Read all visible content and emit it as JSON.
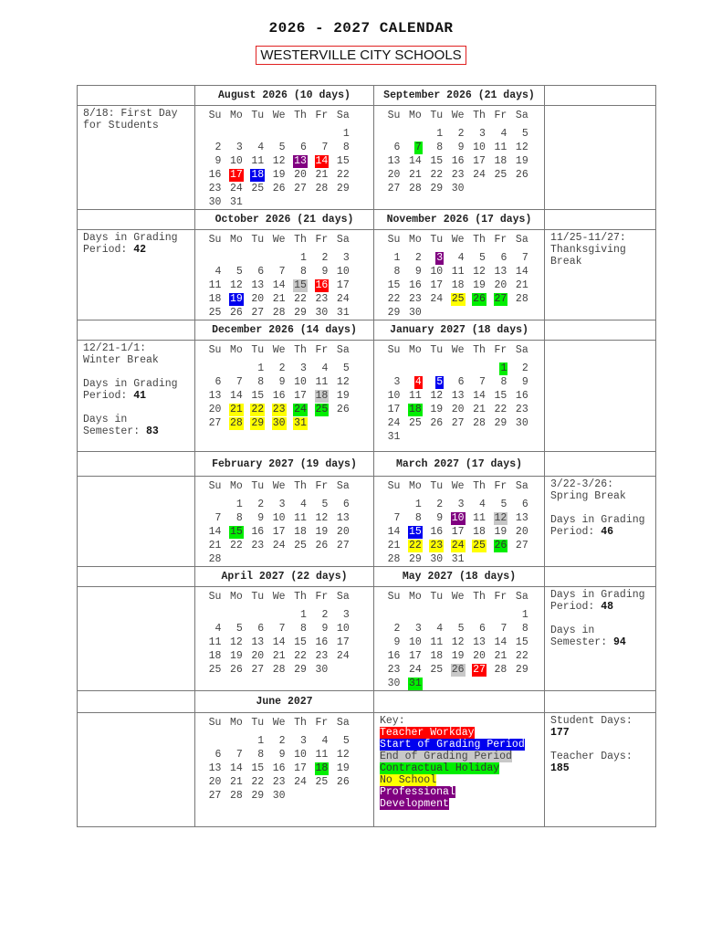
{
  "title": "2026 - 2027 CALENDAR",
  "subtitle": "WESTERVILLE CITY SCHOOLS",
  "weekday_headers": [
    "Su",
    "Mo",
    "Tu",
    "We",
    "Th",
    "Fr",
    "Sa"
  ],
  "colors": {
    "teacher_workday": "#ff0000",
    "start_grading": "#0000ee",
    "end_grading": "#c8c8c8",
    "holiday": "#00ee00",
    "no_school": "#ffff00",
    "pd": "#800080"
  },
  "text_on": {
    "teacher_workday": "#ffffff",
    "start_grading": "#ffffff",
    "end_grading": "#444444",
    "holiday": "#333333",
    "no_school": "#333333",
    "pd": "#ffffff"
  },
  "months": [
    {
      "title": "August 2026 (10 days)",
      "year": 2026,
      "month": 8,
      "highlights": {
        "13": "pd",
        "14": "teacher_workday",
        "17": "teacher_workday",
        "18": "start_grading"
      }
    },
    {
      "title": "September 2026 (21 days)",
      "year": 2026,
      "month": 9,
      "highlights": {
        "7": "holiday"
      }
    },
    {
      "title": "October 2026 (21 days)",
      "year": 2026,
      "month": 10,
      "highlights": {
        "15": "end_grading",
        "16": "teacher_workday",
        "19": "start_grading"
      }
    },
    {
      "title": "November 2026 (17 days)",
      "year": 2026,
      "month": 11,
      "highlights": {
        "3": "pd",
        "25": "no_school",
        "26": "holiday",
        "27": "holiday"
      }
    },
    {
      "title": "December 2026 (14 days)",
      "year": 2026,
      "month": 12,
      "highlights": {
        "18": "end_grading",
        "21": "no_school",
        "22": "no_school",
        "23": "no_school",
        "24": "holiday",
        "25": "holiday",
        "28": "no_school",
        "29": "no_school",
        "30": "no_school",
        "31": "no_school"
      }
    },
    {
      "title": "January 2027 (18 days)",
      "year": 2027,
      "month": 1,
      "highlights": {
        "1": "holiday",
        "4": "teacher_workday",
        "5": "start_grading",
        "18": "holiday"
      }
    },
    {
      "title": "February 2027 (19 days)",
      "year": 2027,
      "month": 2,
      "highlights": {
        "15": "holiday"
      }
    },
    {
      "title": "March 2027 (17 days)",
      "year": 2027,
      "month": 3,
      "highlights": {
        "10": "pd",
        "12": "end_grading",
        "15": "start_grading",
        "22": "no_school",
        "23": "no_school",
        "24": "no_school",
        "25": "no_school",
        "26": "holiday"
      }
    },
    {
      "title": "April 2027 (22 days)",
      "year": 2027,
      "month": 4,
      "highlights": {}
    },
    {
      "title": "May 2027 (18 days)",
      "year": 2027,
      "month": 5,
      "highlights": {
        "26": "end_grading",
        "27": "teacher_workday",
        "31": "holiday"
      }
    },
    {
      "title": "June 2027",
      "year": 2027,
      "month": 6,
      "highlights": {
        "18": "holiday"
      }
    }
  ],
  "blocks": [
    {
      "left": [
        {
          "text": "8/18: First Day for Students",
          "bold": ""
        }
      ],
      "right": []
    },
    {
      "left": [
        {
          "text": "Days in Grading Period: ",
          "bold": "42"
        }
      ],
      "right": [
        {
          "text": "11/25-11/27: Thanksgiving Break",
          "bold": ""
        }
      ]
    },
    {
      "left": [
        {
          "text": "12/21-1/1: Winter Break",
          "bold": ""
        },
        {
          "text": "Days in Grading Period: ",
          "bold": "41"
        },
        {
          "text": "Days in Semester: ",
          "bold": "83"
        }
      ],
      "right": []
    },
    {
      "left": [],
      "right": [
        {
          "text": "3/22-3/26: Spring Break",
          "bold": ""
        },
        {
          "text": "Days in Grading Period: ",
          "bold": "46"
        }
      ]
    },
    {
      "left": [],
      "right": [
        {
          "text": "Days in Grading Period: ",
          "bold": "48"
        },
        {
          "text": "Days in Semester: ",
          "bold": "94"
        }
      ]
    },
    {
      "left": [],
      "right": [
        {
          "text": "Student Days: ",
          "bold": "177"
        },
        {
          "text": "Teacher Days: ",
          "bold": "185"
        }
      ]
    }
  ],
  "key": {
    "label": "Key:",
    "items": [
      {
        "label": "Teacher Workday",
        "type": "teacher_workday"
      },
      {
        "label": "Start of Grading Period",
        "type": "start_grading"
      },
      {
        "label": "End of Grading Period",
        "type": "end_grading"
      },
      {
        "label": "Contractual Holiday",
        "type": "holiday"
      },
      {
        "label": "No School",
        "type": "no_school"
      },
      {
        "label": "Professional Development",
        "type": "pd"
      }
    ]
  }
}
